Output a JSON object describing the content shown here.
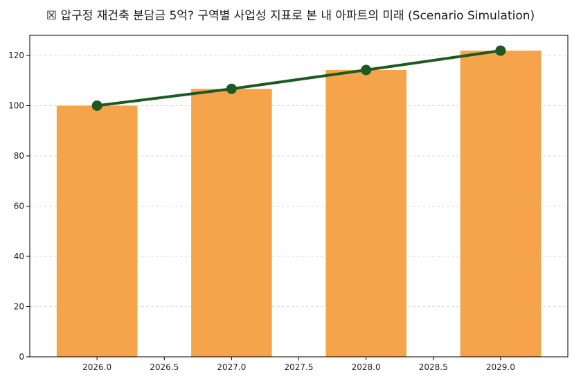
{
  "chart_data": {
    "type": "bar",
    "title": "☒ 압구정 재건축 분담금 5억? 구역별 사업성 지표로 본 내 아파트의 미래 (Scenario Simulation)",
    "xlabel": "",
    "ylabel": "",
    "x": [
      2026.0,
      2027.0,
      2028.0,
      2029.0
    ],
    "bar_values": [
      100,
      106.7,
      114.2,
      121.9
    ],
    "line_values": [
      100,
      106.7,
      114.2,
      121.9
    ],
    "xlim": [
      2025.5,
      2029.5
    ],
    "ylim": [
      0,
      128
    ],
    "xticks": [
      "2026.0",
      "2026.5",
      "2027.0",
      "2027.5",
      "2028.0",
      "2028.5",
      "2029.0"
    ],
    "yticks": [
      "0",
      "20",
      "40",
      "60",
      "80",
      "100",
      "120"
    ],
    "grid": "y-dashed",
    "legend": "none",
    "colors": {
      "bar": "#f6a44c",
      "line": "#1c5a22",
      "grid": "#cfcfcf",
      "axis": "#000000"
    }
  }
}
